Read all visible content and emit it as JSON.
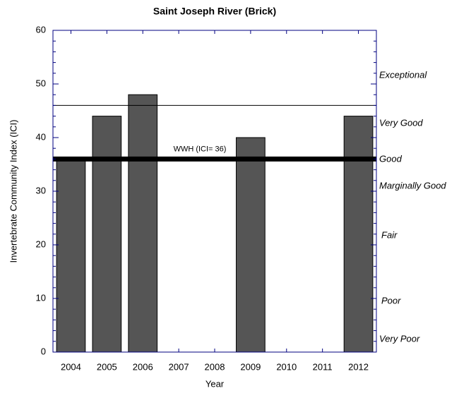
{
  "chart_data": {
    "type": "bar",
    "title": "Saint Joseph River (Brick)",
    "xlabel": "Year",
    "ylabel": "Invertebrate Community Index (ICI)",
    "categories": [
      "2004",
      "2005",
      "2006",
      "2007",
      "2008",
      "2009",
      "2010",
      "2011",
      "2012"
    ],
    "values": [
      36,
      44,
      48,
      null,
      null,
      40,
      null,
      null,
      44
    ],
    "color": "#555555",
    "ylim": [
      0,
      60
    ],
    "yticks": [
      0,
      10,
      20,
      30,
      40,
      50,
      60
    ],
    "reference_lines": [
      {
        "value": 46
      },
      {
        "value": 36,
        "label": "WWH (ICI= 36)"
      }
    ],
    "bands": [
      "Exceptional",
      "Very Good",
      "Good",
      "Marginally Good",
      "Fair",
      "Poor",
      "Very Poor"
    ]
  }
}
